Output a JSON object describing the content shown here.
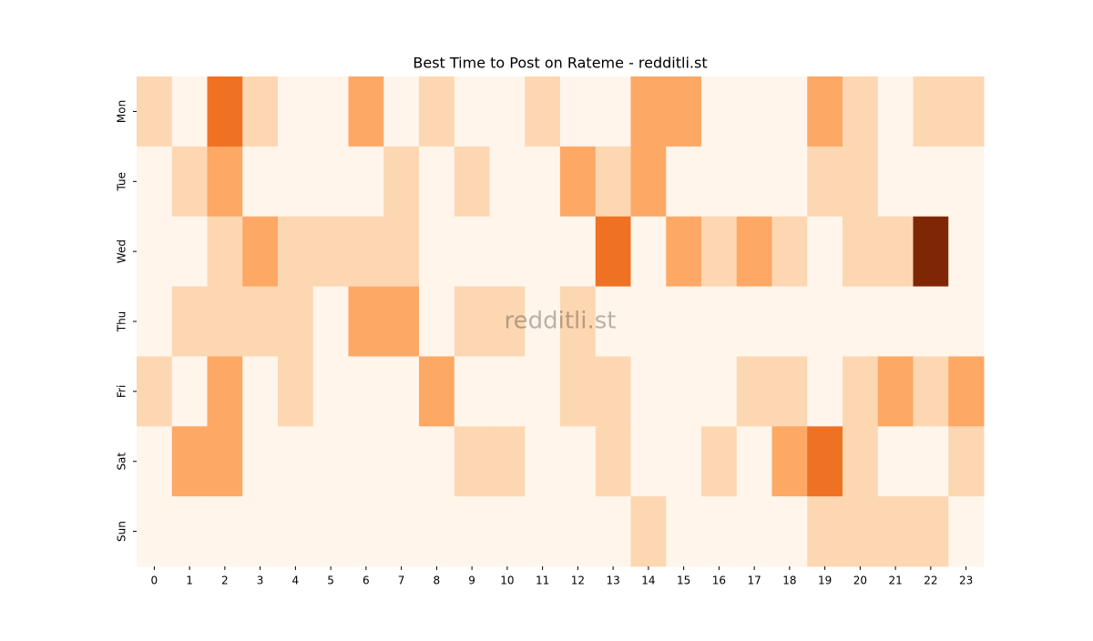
{
  "chart_data": {
    "type": "heatmap",
    "title": "Best Time to Post on Rateme - redditli.st",
    "watermark": "redditli.st",
    "x_categories": [
      0,
      1,
      2,
      3,
      4,
      5,
      6,
      7,
      8,
      9,
      10,
      11,
      12,
      13,
      14,
      15,
      16,
      17,
      18,
      19,
      20,
      21,
      22,
      23
    ],
    "y_categories": [
      "Mon",
      "Tue",
      "Wed",
      "Thu",
      "Fri",
      "Sat",
      "Sun"
    ],
    "values": [
      [
        1,
        0,
        3,
        1,
        0,
        0,
        2,
        0,
        1,
        0,
        0,
        1,
        0,
        0,
        2,
        2,
        0,
        0,
        0,
        2,
        1,
        0,
        1,
        1
      ],
      [
        0,
        1,
        2,
        0,
        0,
        0,
        0,
        1,
        0,
        1,
        0,
        0,
        2,
        1,
        2,
        0,
        0,
        0,
        0,
        1,
        1,
        0,
        0,
        0
      ],
      [
        0,
        0,
        1,
        2,
        1,
        1,
        1,
        1,
        0,
        0,
        0,
        0,
        0,
        3,
        0,
        2,
        1,
        2,
        1,
        0,
        1,
        1,
        5,
        0
      ],
      [
        0,
        1,
        1,
        1,
        1,
        0,
        2,
        2,
        0,
        1,
        1,
        0,
        1,
        0,
        0,
        0,
        0,
        0,
        0,
        0,
        0,
        0,
        0,
        0
      ],
      [
        1,
        0,
        2,
        0,
        1,
        0,
        0,
        0,
        2,
        0,
        0,
        0,
        1,
        1,
        0,
        0,
        0,
        1,
        1,
        0,
        1,
        2,
        1,
        2
      ],
      [
        0,
        2,
        2,
        0,
        0,
        0,
        0,
        0,
        0,
        1,
        1,
        0,
        0,
        1,
        0,
        0,
        1,
        0,
        2,
        3,
        1,
        0,
        0,
        1
      ],
      [
        0,
        0,
        0,
        0,
        0,
        0,
        0,
        0,
        0,
        0,
        0,
        0,
        0,
        0,
        1,
        0,
        0,
        0,
        0,
        1,
        1,
        1,
        1,
        0
      ]
    ],
    "color_stops": [
      "#fff5eb",
      "#fdd0a2",
      "#fd8d3c",
      "#d94801",
      "#7f2704"
    ]
  }
}
